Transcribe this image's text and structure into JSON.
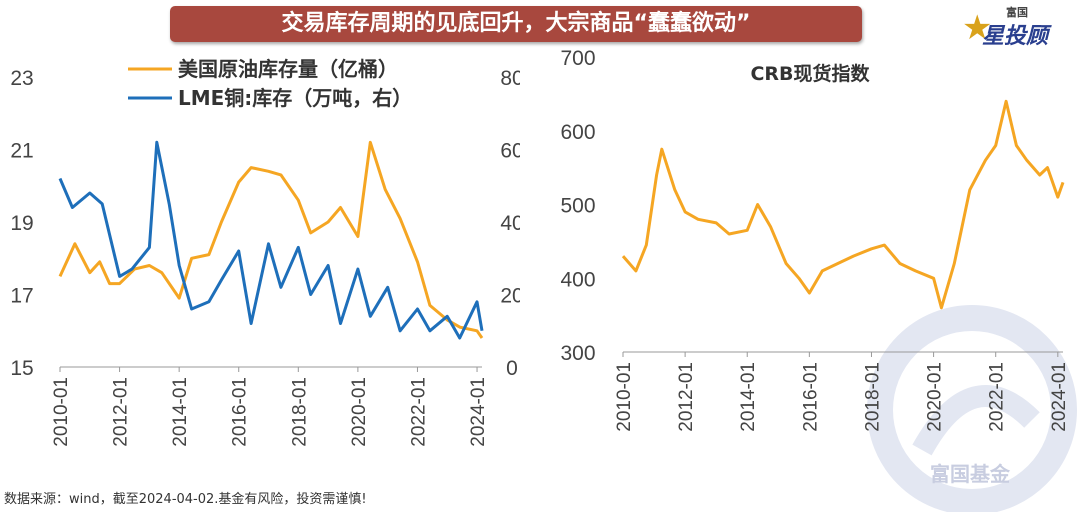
{
  "header": {
    "title": "交易库存周期的见底回升，大宗商品“蠢蠢欲动”"
  },
  "logo": {
    "small": "富国",
    "main": "星投顾"
  },
  "footer": {
    "note": "数据来源：wind，截至2024-04-02.基金有风险，投资需谨慎!"
  },
  "watermark": {
    "text": "富国基金"
  },
  "colors": {
    "oil": "#f5a623",
    "lme": "#1e6fba",
    "crb": "#f5a623",
    "banner": "#a8483e",
    "grid": "#cfcfcf"
  },
  "chart_data": [
    {
      "type": "line",
      "x_ticks": [
        "2010-01",
        "2012-01",
        "2014-01",
        "2016-01",
        "2018-01",
        "2020-01",
        "2022-01",
        "2024-01"
      ],
      "xlim": [
        "2010-01",
        "2024-03"
      ],
      "ylim": [
        15,
        23
      ],
      "yticks": [
        15,
        17,
        19,
        21,
        23
      ],
      "y2lim": [
        0,
        80
      ],
      "y2ticks": [
        0,
        20,
        40,
        60,
        80
      ],
      "legend_position": "top",
      "series": [
        {
          "name": "美国原油库存量（亿桶）",
          "axis": "left",
          "x": [
            "2010-01",
            "2010-07",
            "2011-01",
            "2011-05",
            "2011-09",
            "2012-01",
            "2012-07",
            "2013-01",
            "2013-06",
            "2014-01",
            "2014-06",
            "2015-01",
            "2015-06",
            "2016-01",
            "2016-06",
            "2017-01",
            "2017-06",
            "2018-01",
            "2018-06",
            "2019-01",
            "2019-06",
            "2020-01",
            "2020-06",
            "2020-12",
            "2021-06",
            "2022-01",
            "2022-06",
            "2023-01",
            "2023-06",
            "2024-01",
            "2024-03"
          ],
          "y": [
            17.5,
            18.4,
            17.6,
            17.9,
            17.3,
            17.3,
            17.7,
            17.8,
            17.6,
            16.9,
            18.0,
            18.1,
            19.0,
            20.1,
            20.5,
            20.4,
            20.3,
            19.6,
            18.7,
            19.0,
            19.4,
            18.6,
            21.2,
            19.9,
            19.1,
            17.9,
            16.7,
            16.3,
            16.1,
            16.0,
            15.8
          ]
        },
        {
          "name": "LME铜:库存（万吨，右）",
          "axis": "right",
          "x": [
            "2010-01",
            "2010-06",
            "2011-01",
            "2011-06",
            "2012-01",
            "2012-06",
            "2013-01",
            "2013-04",
            "2013-09",
            "2014-01",
            "2014-06",
            "2015-01",
            "2015-06",
            "2016-01",
            "2016-06",
            "2017-01",
            "2017-06",
            "2018-01",
            "2018-06",
            "2019-01",
            "2019-06",
            "2020-01",
            "2020-06",
            "2021-01",
            "2021-06",
            "2022-01",
            "2022-06",
            "2023-01",
            "2023-06",
            "2024-01",
            "2024-03"
          ],
          "y": [
            52,
            44,
            48,
            45,
            25,
            27,
            33,
            62,
            45,
            28,
            16,
            18,
            24,
            32,
            12,
            34,
            22,
            33,
            20,
            28,
            12,
            27,
            14,
            22,
            10,
            16,
            10,
            14,
            8,
            18,
            10
          ]
        }
      ]
    },
    {
      "type": "line",
      "title": "CRB现货指数",
      "x_ticks": [
        "2010-01",
        "2012-01",
        "2014-01",
        "2016-01",
        "2018-01",
        "2020-01",
        "2022-01",
        "2024-01"
      ],
      "xlim": [
        "2010-01",
        "2024-03"
      ],
      "ylim": [
        300,
        700
      ],
      "yticks": [
        300,
        400,
        500,
        600,
        700
      ],
      "series": [
        {
          "name": "CRB现货指数",
          "x": [
            "2010-01",
            "2010-06",
            "2010-10",
            "2011-02",
            "2011-04",
            "2011-09",
            "2012-01",
            "2012-06",
            "2013-01",
            "2013-06",
            "2014-01",
            "2014-05",
            "2014-10",
            "2015-04",
            "2015-09",
            "2016-01",
            "2016-06",
            "2016-12",
            "2017-06",
            "2018-01",
            "2018-06",
            "2018-12",
            "2019-06",
            "2020-01",
            "2020-04",
            "2020-09",
            "2021-03",
            "2021-09",
            "2022-01",
            "2022-05",
            "2022-09",
            "2023-01",
            "2023-06",
            "2023-09",
            "2024-01",
            "2024-03"
          ],
          "y": [
            430,
            410,
            445,
            540,
            575,
            520,
            490,
            480,
            475,
            460,
            465,
            500,
            470,
            420,
            400,
            380,
            410,
            420,
            430,
            440,
            445,
            420,
            410,
            400,
            360,
            420,
            520,
            560,
            580,
            640,
            580,
            560,
            540,
            550,
            510,
            530
          ]
        }
      ]
    }
  ]
}
